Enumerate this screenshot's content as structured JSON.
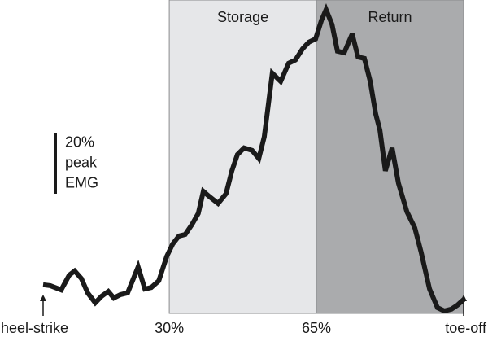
{
  "chart_data": {
    "type": "line",
    "regions": [
      {
        "label": "Storage",
        "start": 30,
        "end": 65,
        "color": "#e6e7e9"
      },
      {
        "label": "Return",
        "start": 65,
        "end": 100,
        "color": "#aaabad"
      }
    ],
    "x": [
      0,
      1.7,
      4.3,
      6.2,
      7.5,
      9.1,
      10.6,
      12.4,
      13.9,
      15.5,
      16.8,
      18.4,
      20.1,
      22.6,
      24.2,
      25.7,
      27.5,
      29.4,
      30.8,
      32.3,
      33.8,
      35.4,
      36.9,
      38.1,
      39.7,
      41.6,
      43.5,
      44.9,
      46.2,
      47.8,
      49.7,
      51.3,
      52.6,
      54.5,
      56.5,
      58.4,
      60,
      61.7,
      63.2,
      64.8,
      66.2,
      67.3,
      68.7,
      70,
      71.6,
      73.5,
      74.9,
      76.4,
      77.8,
      79.1,
      80.1,
      81.4,
      83,
      84.5,
      86.5,
      88.4,
      89.9,
      91.9,
      93.8,
      95.4,
      97.1,
      98.5,
      100
    ],
    "series": [
      {
        "color": "#1a1a1a",
        "values": [
          9.5,
          9.2,
          7.8,
          12.7,
          14.1,
          11.6,
          6.8,
          3.5,
          5.7,
          7.3,
          5.1,
          6.2,
          6.8,
          15.4,
          8.1,
          8.6,
          10.8,
          18.9,
          23,
          25.7,
          26.2,
          29.5,
          33.2,
          40.5,
          38.6,
          36.5,
          39.7,
          47.3,
          52.7,
          54.9,
          54.1,
          51.4,
          58.6,
          79.7,
          77,
          83,
          84.1,
          87.8,
          90,
          91.1,
          97.3,
          100.8,
          95.9,
          87,
          86.5,
          92.7,
          85.1,
          84.6,
          77,
          66.2,
          60.8,
          47.3,
          54.9,
          43.2,
          33.8,
          28.4,
          20.3,
          8.1,
          1.9,
          0.8,
          1.4,
          2.7,
          4.6
        ]
      }
    ],
    "xlim": [
      0,
      100
    ],
    "ylim": [
      0,
      104
    ],
    "xticks": [
      {
        "value": 0,
        "label": "heel-strike"
      },
      {
        "value": 30,
        "label": "30%"
      },
      {
        "value": 65,
        "label": "65%"
      },
      {
        "value": 100,
        "label": "toe-off"
      }
    ],
    "scale_bar": {
      "value": 20,
      "lines": [
        "20%",
        "peak",
        "EMG"
      ]
    }
  }
}
